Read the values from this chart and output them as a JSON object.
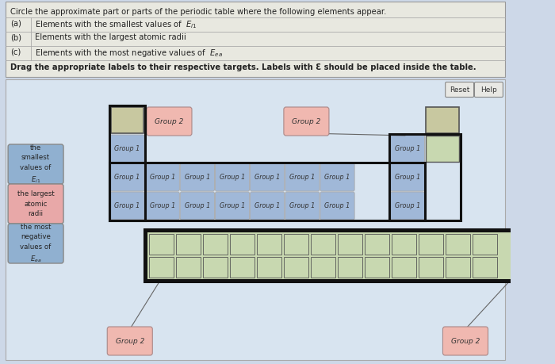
{
  "bg_color": "#cdd8e8",
  "header_bg": "#e8e8e0",
  "main_bg": "#d8e4f0",
  "cell_blue": "#a0b8d8",
  "cell_green": "#c8d8b0",
  "cell_tan": "#c8c8a0",
  "label_blue_bg": "#90b0d0",
  "label_pink_bg": "#e8a8a8",
  "label_group2_bg": "#f0b8b0",
  "button_bg": "#e8e8e4",
  "text_dark": "#222222",
  "title": "Circle the approximate part or parts of the periodic table where the following elements appear.",
  "row_a": "Elements with the smallest values of ",
  "row_a_math": "E_{i1}",
  "row_b": "Elements with the largest atomic radii",
  "row_c": "Elements with the most negative values of ",
  "row_c_math": "E_{ea}",
  "drag_text": "Drag the appropriate labels to their respective targets. Labels with Ɛ should be placed inside the table.",
  "left_labels": [
    {
      "text": "the\nsmallest\nvalues of\n$E_{i1}$",
      "color": "#90b0d0"
    },
    {
      "text": "the largest\natomic\nradii",
      "color": "#e8a8a8"
    },
    {
      "text": "the most\nnegative\nvalues of\n$E_{ea}$",
      "color": "#90b0d0"
    }
  ]
}
